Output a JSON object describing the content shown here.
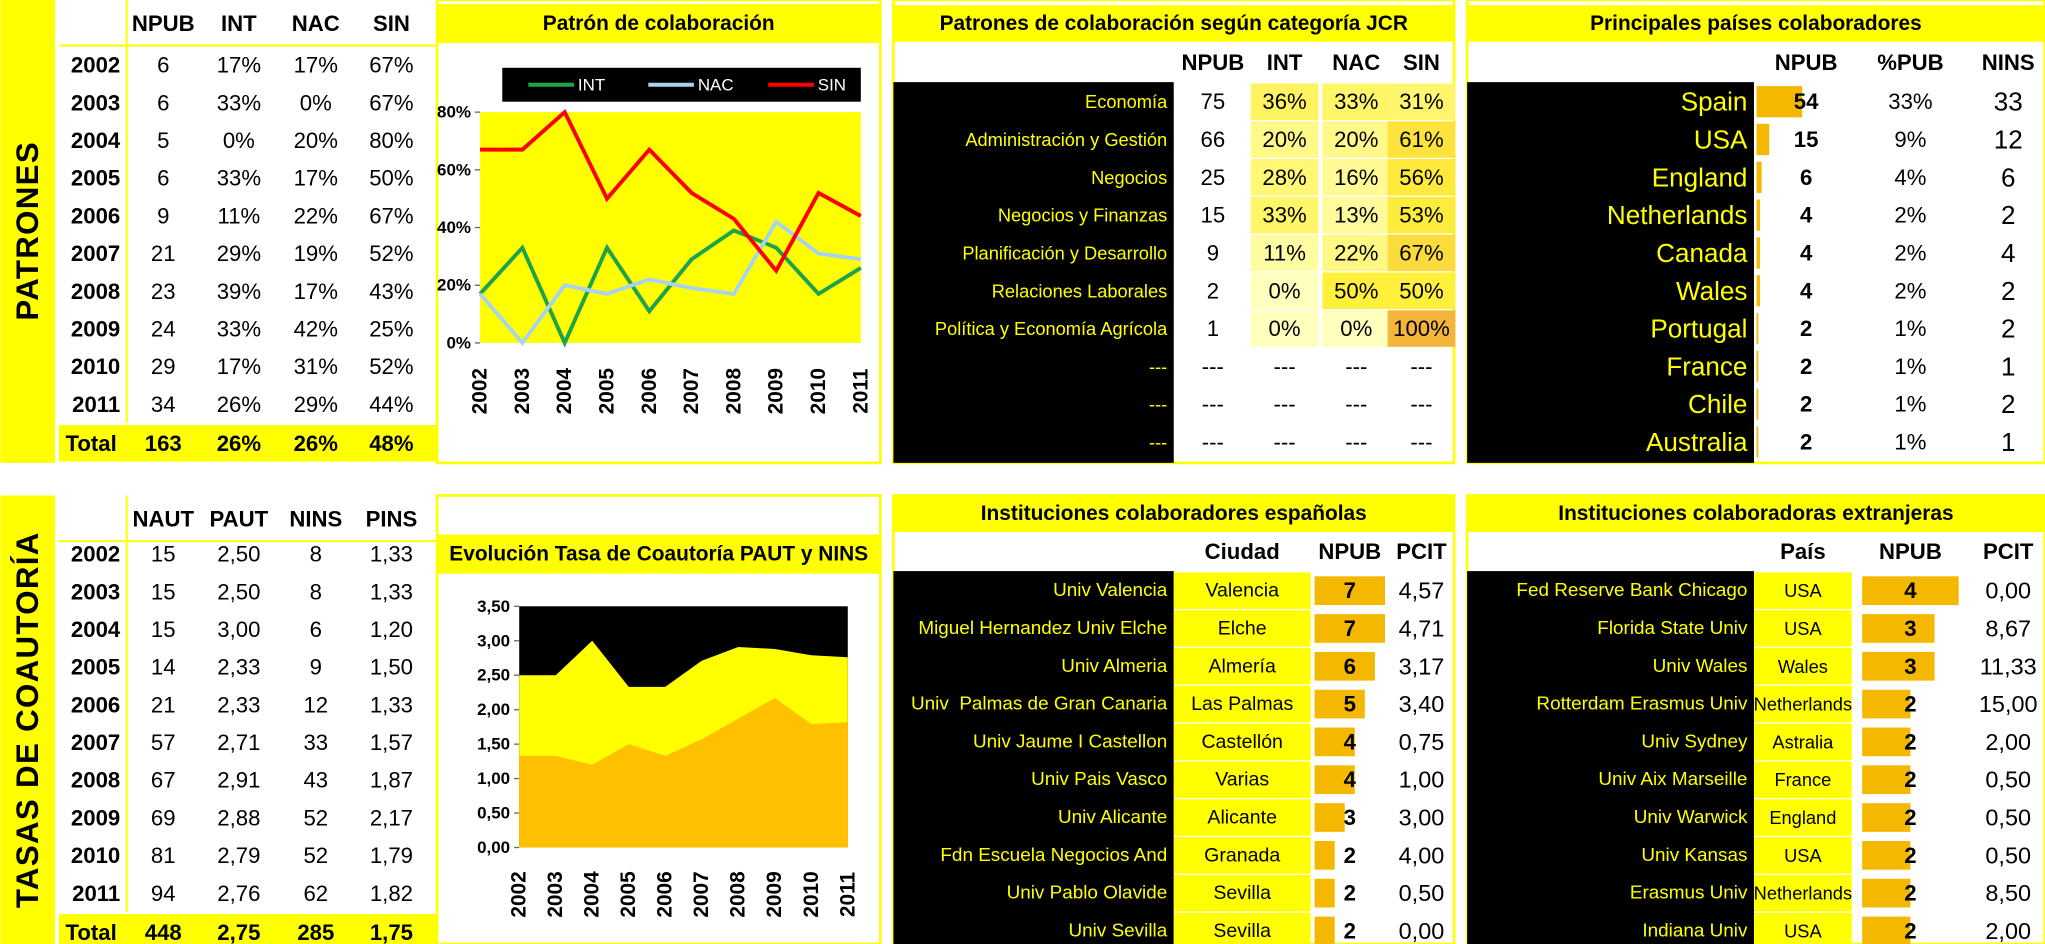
{
  "side_labels": [
    "PATRONES",
    "TASAS DE COAUTORÍA"
  ],
  "patrones": {
    "columns": [
      "NPUB",
      "INT",
      "NAC",
      "SIN"
    ],
    "rows": [
      [
        2002,
        6,
        "17%",
        "17%",
        "67%"
      ],
      [
        2003,
        6,
        "33%",
        "0%",
        "67%"
      ],
      [
        2004,
        5,
        "0%",
        "20%",
        "80%"
      ],
      [
        2005,
        6,
        "33%",
        "17%",
        "50%"
      ],
      [
        2006,
        9,
        "11%",
        "22%",
        "67%"
      ],
      [
        2007,
        21,
        "29%",
        "19%",
        "52%"
      ],
      [
        2008,
        23,
        "39%",
        "17%",
        "43%"
      ],
      [
        2009,
        24,
        "33%",
        "42%",
        "25%"
      ],
      [
        2010,
        29,
        "17%",
        "31%",
        "52%"
      ],
      [
        2011,
        34,
        "26%",
        "29%",
        "44%"
      ]
    ],
    "total": [
      "Total",
      163,
      "26%",
      "26%",
      "48%"
    ]
  },
  "coautoria": {
    "columns": [
      "NAUT",
      "PAUT",
      "NINS",
      "PINS"
    ],
    "rows": [
      [
        2002,
        15,
        "2,50",
        8,
        "1,33"
      ],
      [
        2003,
        15,
        "2,50",
        8,
        "1,33"
      ],
      [
        2004,
        15,
        "3,00",
        6,
        "1,20"
      ],
      [
        2005,
        14,
        "2,33",
        9,
        "1,50"
      ],
      [
        2006,
        21,
        "2,33",
        12,
        "1,33"
      ],
      [
        2007,
        57,
        "2,71",
        33,
        "1,57"
      ],
      [
        2008,
        67,
        "2,91",
        43,
        "1,87"
      ],
      [
        2009,
        69,
        "2,88",
        52,
        "2,17"
      ],
      [
        2010,
        81,
        "2,79",
        52,
        "1,79"
      ],
      [
        2011,
        94,
        "2,76",
        62,
        "1,82"
      ]
    ],
    "total": [
      "Total",
      448,
      "2,75",
      285,
      "1,75"
    ]
  },
  "chart_data": [
    {
      "type": "line",
      "title": "Patrón de colaboración",
      "categories": [
        2002,
        2003,
        2004,
        2005,
        2006,
        2007,
        2008,
        2009,
        2010,
        2011
      ],
      "series": [
        {
          "name": "INT",
          "color": "#1fa34a",
          "values": [
            17,
            33,
            0,
            33,
            11,
            29,
            39,
            33,
            17,
            26
          ]
        },
        {
          "name": "NAC",
          "color": "#a8d3ee",
          "values": [
            17,
            0,
            20,
            17,
            22,
            19,
            17,
            42,
            31,
            29
          ]
        },
        {
          "name": "SIN",
          "color": "#ff0000",
          "values": [
            67,
            67,
            80,
            50,
            67,
            52,
            43,
            25,
            52,
            44
          ]
        }
      ],
      "ylim": [
        0,
        80
      ],
      "yticks": [
        {
          "value": 0,
          "label": "0%"
        },
        {
          "value": 20,
          "label": "20%"
        },
        {
          "value": 40,
          "label": "40%"
        },
        {
          "value": 60,
          "label": "60%"
        },
        {
          "value": 80,
          "label": "80%"
        }
      ],
      "plot_color": "#ffff00",
      "legend": "top"
    },
    {
      "type": "area",
      "title": "Evolución Tasa de Coautoría PAUT y NINS",
      "categories": [
        2002,
        2003,
        2004,
        2005,
        2006,
        2007,
        2008,
        2009,
        2010,
        2011
      ],
      "series": [
        {
          "color": "#ffff00",
          "values": [
            2.5,
            2.5,
            3.0,
            2.33,
            2.33,
            2.71,
            2.91,
            2.88,
            2.79,
            2.76
          ]
        },
        {
          "color": "#ffc000",
          "values": [
            1.33,
            1.33,
            1.2,
            1.5,
            1.33,
            1.57,
            1.87,
            2.17,
            1.79,
            1.82
          ]
        }
      ],
      "ylim": [
        0,
        3.5
      ],
      "yticks": [
        {
          "value": 0,
          "label": "0,00"
        },
        {
          "value": 0.5,
          "label": "0,50"
        },
        {
          "value": 1,
          "label": "1,00"
        },
        {
          "value": 1.5,
          "label": "1,50"
        },
        {
          "value": 2,
          "label": "2,00"
        },
        {
          "value": 2.5,
          "label": "2,50"
        },
        {
          "value": 3,
          "label": "3,00"
        },
        {
          "value": 3.5,
          "label": "3,50"
        }
      ],
      "plot_color": "#000000"
    }
  ],
  "jcr": {
    "title": "Patrones de colaboración según categoría JCR",
    "columns": [
      "NPUB",
      "INT",
      "NAC",
      "SIN"
    ],
    "rows": [
      [
        "Economía",
        75,
        "36%",
        "33%",
        "31%"
      ],
      [
        "Administración y Gestión",
        66,
        "20%",
        "20%",
        "61%"
      ],
      [
        "Negocios",
        25,
        "28%",
        "16%",
        "56%"
      ],
      [
        "Negocios y Finanzas",
        15,
        "33%",
        "13%",
        "53%"
      ],
      [
        "Planificación y Desarrollo",
        9,
        "11%",
        "22%",
        "67%"
      ],
      [
        "Relaciones Laborales",
        2,
        "0%",
        "50%",
        "50%"
      ],
      [
        "Política y Economía Agrícola",
        1,
        "0%",
        "0%",
        "100%"
      ],
      [
        "---",
        "---",
        "---",
        "---",
        "---"
      ],
      [
        "---",
        "---",
        "---",
        "---",
        "---"
      ],
      [
        "---",
        "---",
        "---",
        "---",
        "---"
      ]
    ]
  },
  "paises": {
    "title": "Principales países colaboradores",
    "columns": [
      "NPUB",
      "%PUB",
      "NINS"
    ],
    "rows": [
      [
        "Spain",
        54,
        "33%",
        33
      ],
      [
        "USA",
        15,
        "9%",
        12
      ],
      [
        "England",
        6,
        "4%",
        6
      ],
      [
        "Netherlands",
        4,
        "2%",
        2
      ],
      [
        "Canada",
        4,
        "2%",
        4
      ],
      [
        "Wales",
        4,
        "2%",
        2
      ],
      [
        "Portugal",
        2,
        "1%",
        2
      ],
      [
        "France",
        2,
        "1%",
        1
      ],
      [
        "Chile",
        2,
        "1%",
        2
      ],
      [
        "Australia",
        2,
        "1%",
        1
      ]
    ]
  },
  "espanolas": {
    "title": "Instituciones colaboradores españolas",
    "columns": [
      "Ciudad",
      "NPUB",
      "PCIT"
    ],
    "rows": [
      [
        "Univ Valencia",
        "Valencia",
        7,
        "4,57"
      ],
      [
        "Miguel Hernandez Univ Elche",
        "Elche",
        7,
        "4,71"
      ],
      [
        "Univ Almeria",
        "Almería",
        6,
        "3,17"
      ],
      [
        "Univ  Palmas de Gran Canaria",
        "Las Palmas",
        5,
        "3,40"
      ],
      [
        "Univ Jaume I Castellon",
        "Castellón",
        4,
        "0,75"
      ],
      [
        "Univ Pais Vasco",
        "Varias",
        4,
        "1,00"
      ],
      [
        "Univ Alicante",
        "Alicante",
        3,
        "3,00"
      ],
      [
        "Fdn Escuela Negocios And",
        "Granada",
        2,
        "4,00"
      ],
      [
        "Univ Pablo Olavide",
        "Sevilla",
        2,
        "0,50"
      ],
      [
        "Univ Sevilla",
        "Sevilla",
        2,
        "0,00"
      ]
    ]
  },
  "extranjeras": {
    "title": "Instituciones colaboradoras extranjeras",
    "columns": [
      "País",
      "NPUB",
      "PCIT"
    ],
    "rows": [
      [
        "Fed Reserve Bank Chicago",
        "USA",
        4,
        "0,00"
      ],
      [
        "Florida State Univ",
        "USA",
        3,
        "8,67"
      ],
      [
        "Univ Wales",
        "Wales",
        3,
        "11,33"
      ],
      [
        "Rotterdam Erasmus Univ",
        "Netherlands",
        2,
        "15,00"
      ],
      [
        "Univ Sydney",
        "Astralia",
        2,
        "2,00"
      ],
      [
        "Univ Aix Marseille",
        "France",
        2,
        "0,50"
      ],
      [
        "Univ Warwick",
        "England",
        2,
        "0,50"
      ],
      [
        "Univ Kansas",
        "USA",
        2,
        "0,50"
      ],
      [
        "Erasmus Univ",
        "Netherlands",
        2,
        "8,50"
      ],
      [
        "Indiana Univ",
        "USA",
        2,
        "2,00"
      ]
    ]
  }
}
